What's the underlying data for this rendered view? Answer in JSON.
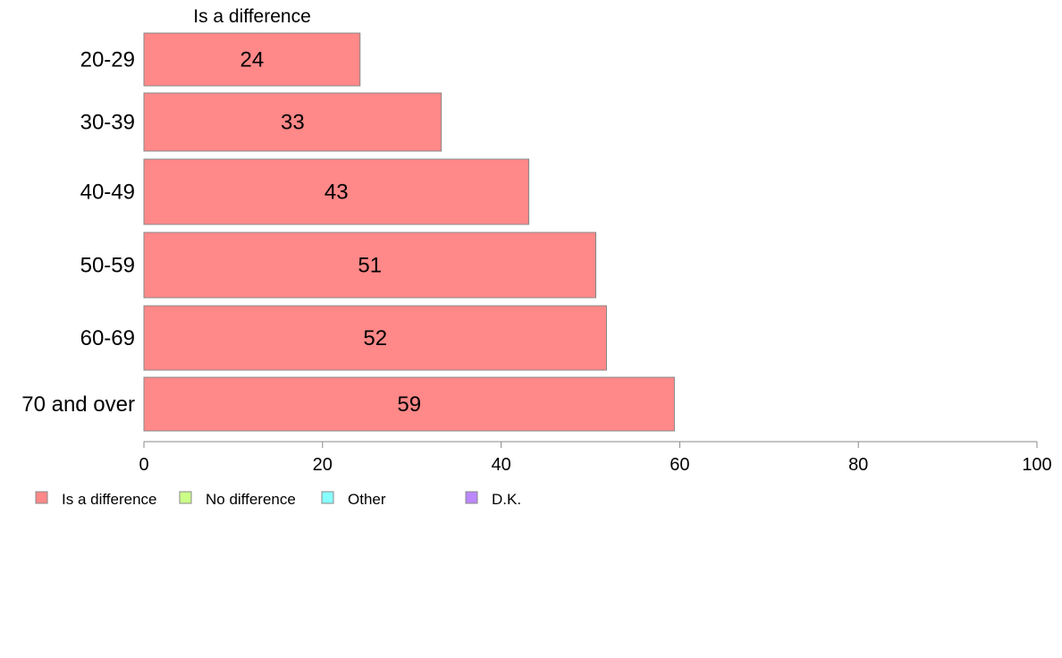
{
  "chart_data": {
    "type": "bar",
    "orientation": "horizontal",
    "column_header": "Is a difference",
    "categories": [
      "20-29",
      "30-39",
      "40-49",
      "50-59",
      "60-69",
      "70 and over"
    ],
    "series": [
      {
        "name": "Is a difference",
        "values": [
          24.2,
          33.3,
          43.1,
          50.6,
          51.8,
          59.4
        ],
        "labels": [
          "24",
          "33",
          "43",
          "51",
          "52",
          "59"
        ]
      }
    ],
    "xlim": [
      0,
      100
    ],
    "x_ticks": [
      0,
      20,
      40,
      60,
      80,
      100
    ],
    "grid": false,
    "legend": [
      {
        "label": "Is a difference",
        "color": "#ff8888"
      },
      {
        "label": "No difference",
        "color": "#ccff88"
      },
      {
        "label": "Other",
        "color": "#88ffff"
      },
      {
        "label": "D.K.",
        "color": "#bb88ff"
      }
    ],
    "legend_position": "bottom-left"
  }
}
